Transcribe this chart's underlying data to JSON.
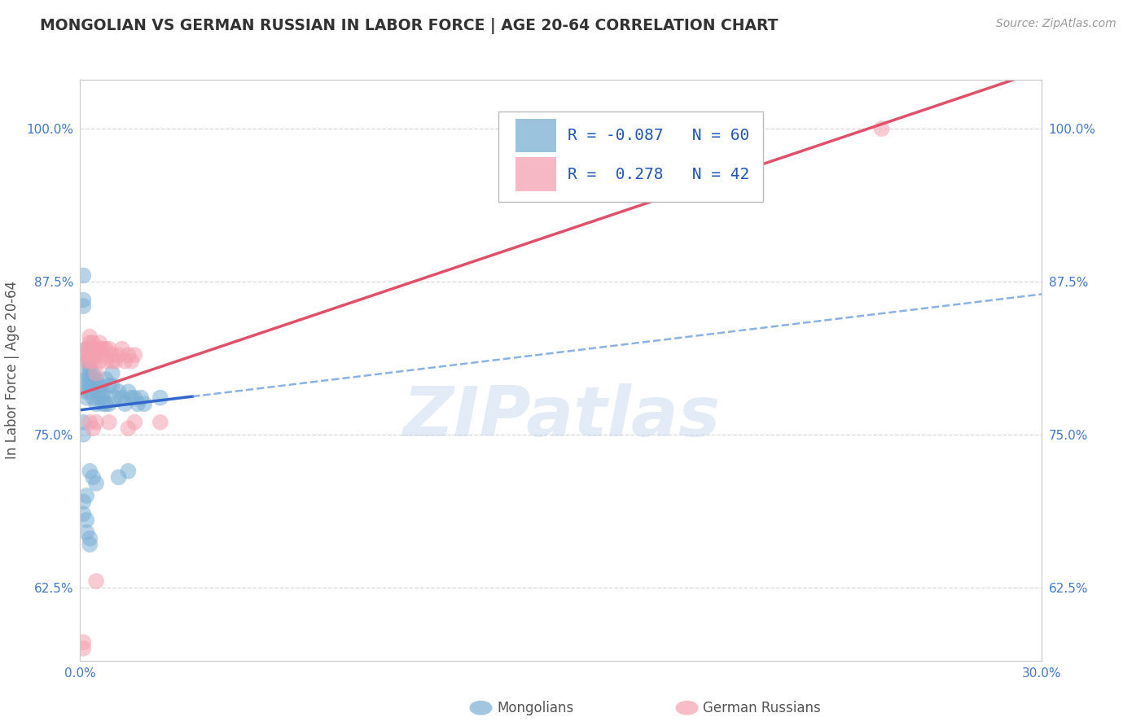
{
  "title": "MONGOLIAN VS GERMAN RUSSIAN IN LABOR FORCE | AGE 20-64 CORRELATION CHART",
  "source": "Source: ZipAtlas.com",
  "ylabel": "In Labor Force | Age 20-64",
  "xlim": [
    0.0,
    0.3
  ],
  "ylim": [
    0.565,
    1.04
  ],
  "yticks": [
    0.625,
    0.75,
    0.875,
    1.0
  ],
  "ytick_labels": [
    "62.5%",
    "75.0%",
    "87.5%",
    "100.0%"
  ],
  "xticks": [
    0.0,
    0.05,
    0.1,
    0.15,
    0.2,
    0.25,
    0.3
  ],
  "xtick_labels": [
    "0.0%",
    "",
    "",
    "",
    "",
    "",
    "30.0%"
  ],
  "mongolian_color": "#7bafd4",
  "german_russian_color": "#f4a0b0",
  "mongolian_R": -0.087,
  "mongolian_N": 60,
  "german_russian_R": 0.278,
  "german_russian_N": 42,
  "legend_label1": "Mongolians",
  "legend_label2": "German Russians",
  "watermark": "ZIPatlas",
  "background_color": "#ffffff",
  "grid_color": "#d8d8d8",
  "title_color": "#333333",
  "source_color": "#999999",
  "ytick_color": "#4477cc",
  "mongolian_x": [
    0.001,
    0.001,
    0.001,
    0.001,
    0.001,
    0.002,
    0.002,
    0.002,
    0.002,
    0.002,
    0.002,
    0.002,
    0.003,
    0.003,
    0.003,
    0.003,
    0.003,
    0.003,
    0.004,
    0.004,
    0.004,
    0.004,
    0.005,
    0.005,
    0.005,
    0.006,
    0.006,
    0.006,
    0.007,
    0.007,
    0.007,
    0.008,
    0.008,
    0.009,
    0.009,
    0.01,
    0.01,
    0.011,
    0.012,
    0.013,
    0.014,
    0.015,
    0.016,
    0.017,
    0.018,
    0.019,
    0.02,
    0.002,
    0.001,
    0.001,
    0.003,
    0.004,
    0.005,
    0.002,
    0.002,
    0.003,
    0.003,
    0.025,
    0.015,
    0.012
  ],
  "mongolian_y": [
    0.88,
    0.86,
    0.855,
    0.76,
    0.75,
    0.82,
    0.81,
    0.8,
    0.795,
    0.79,
    0.785,
    0.78,
    0.81,
    0.805,
    0.8,
    0.795,
    0.79,
    0.785,
    0.8,
    0.795,
    0.79,
    0.78,
    0.795,
    0.79,
    0.775,
    0.79,
    0.785,
    0.78,
    0.785,
    0.78,
    0.775,
    0.795,
    0.775,
    0.79,
    0.775,
    0.8,
    0.79,
    0.78,
    0.785,
    0.78,
    0.775,
    0.785,
    0.78,
    0.78,
    0.775,
    0.78,
    0.775,
    0.7,
    0.695,
    0.685,
    0.72,
    0.715,
    0.71,
    0.68,
    0.67,
    0.665,
    0.66,
    0.78,
    0.72,
    0.715
  ],
  "german_russian_x": [
    0.001,
    0.001,
    0.002,
    0.002,
    0.002,
    0.003,
    0.003,
    0.003,
    0.003,
    0.004,
    0.004,
    0.004,
    0.004,
    0.005,
    0.005,
    0.005,
    0.006,
    0.006,
    0.006,
    0.007,
    0.007,
    0.008,
    0.008,
    0.009,
    0.01,
    0.01,
    0.011,
    0.012,
    0.013,
    0.014,
    0.015,
    0.016,
    0.017,
    0.003,
    0.004,
    0.005,
    0.005,
    0.009,
    0.015,
    0.017,
    0.025,
    0.25
  ],
  "german_russian_y": [
    0.58,
    0.575,
    0.82,
    0.815,
    0.81,
    0.83,
    0.825,
    0.82,
    0.81,
    0.825,
    0.82,
    0.815,
    0.81,
    0.82,
    0.815,
    0.8,
    0.825,
    0.82,
    0.81,
    0.82,
    0.815,
    0.82,
    0.81,
    0.82,
    0.815,
    0.81,
    0.81,
    0.815,
    0.82,
    0.81,
    0.815,
    0.81,
    0.815,
    0.76,
    0.755,
    0.76,
    0.63,
    0.76,
    0.755,
    0.76,
    0.76,
    1.0
  ]
}
